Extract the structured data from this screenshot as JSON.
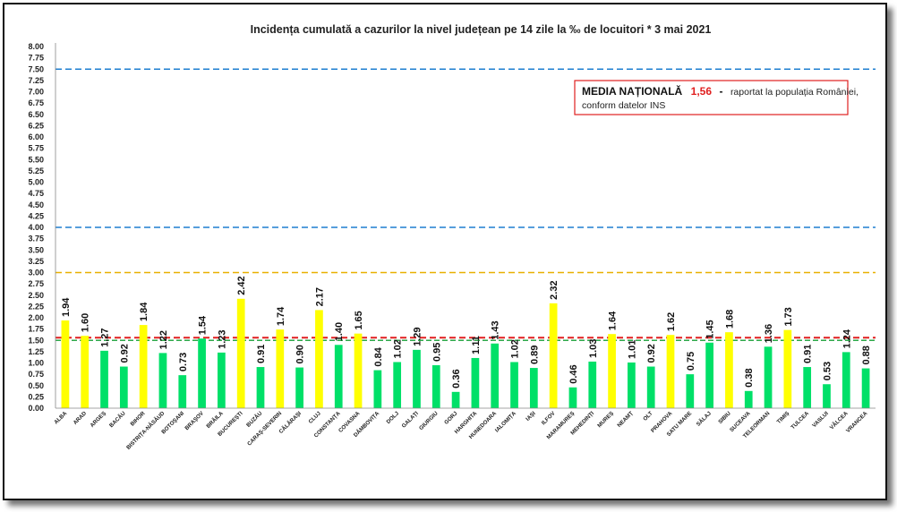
{
  "chart_data": {
    "type": "bar",
    "title": "Incidența cumulată a cazurilor la nivel județean pe 14 zile la ‰ de locuitori *   3 mai 2021",
    "ylim": [
      0,
      8
    ],
    "yticks": [
      "0.00",
      "0.25",
      "0.50",
      "0.75",
      "1.00",
      "1.25",
      "1.50",
      "1.75",
      "2.00",
      "2.25",
      "2.50",
      "2.75",
      "3.00",
      "3.25",
      "3.50",
      "3.75",
      "4.00",
      "4.25",
      "4.50",
      "4.75",
      "5.00",
      "5.25",
      "5.50",
      "5.75",
      "6.00",
      "6.25",
      "6.50",
      "6.75",
      "7.00",
      "7.25",
      "7.50",
      "7.75",
      "8.00"
    ],
    "grid": false,
    "categories": [
      "ALBA",
      "ARAD",
      "ARGEȘ",
      "BACĂU",
      "BIHOR",
      "BISTRIȚA-NĂSĂUD",
      "BOTOȘANI",
      "BRAȘOV",
      "BRĂILA",
      "BUCUREȘTI",
      "BUZĂU",
      "CARAȘ-SEVERIN",
      "CĂLĂRAȘI",
      "CLUJ",
      "CONSTANȚA",
      "COVASNA",
      "DÂMBOVIȚA",
      "DOLJ",
      "GALAȚI",
      "GIURGIU",
      "GORJ",
      "HARGHITA",
      "HUNEDOARA",
      "IALOMIȚA",
      "IAȘI",
      "ILFOV",
      "MARAMUREȘ",
      "MEHEDINȚI",
      "MUREȘ",
      "NEAMȚ",
      "OLT",
      "PRAHOVA",
      "SATU MARE",
      "SĂLAJ",
      "SIBIU",
      "SUCEAVA",
      "TELEORMAN",
      "TIMIȘ",
      "TULCEA",
      "VASLUI",
      "VÂLCEA",
      "VRANCEA"
    ],
    "values": [
      1.94,
      1.6,
      1.27,
      0.92,
      1.84,
      1.22,
      0.73,
      1.54,
      1.23,
      2.42,
      0.91,
      1.74,
      0.9,
      2.17,
      1.4,
      1.65,
      0.84,
      1.02,
      1.29,
      0.95,
      0.36,
      1.11,
      1.43,
      1.02,
      0.89,
      2.32,
      0.46,
      1.03,
      1.64,
      1.01,
      0.92,
      1.62,
      0.75,
      1.45,
      1.68,
      0.38,
      1.36,
      1.73,
      0.91,
      0.53,
      1.24,
      0.88
    ],
    "labels": [
      "1.94",
      "1.60",
      "1.27",
      "0.92",
      "1.84",
      "1.22",
      "0.73",
      "1.54",
      "1.23",
      "2.42",
      "0.91",
      "1.74",
      "0.90",
      "2.17",
      "1.40",
      "1.65",
      "0.84",
      "1.02",
      "1.29",
      "0.95",
      "0.36",
      "1.11",
      "1.43",
      "1.02",
      "0.89",
      "2.32",
      "0.46",
      "1.03",
      "1.64",
      "1.01",
      "0.92",
      "1.62",
      "0.75",
      "1.45",
      "1.68",
      "0.38",
      "1.36",
      "1.73",
      "0.91",
      "0.53",
      "1.24",
      "0.88"
    ],
    "colors": {
      "above": "#ffff00",
      "below": "#00e068"
    },
    "threshold_lines": [
      {
        "value": 7.5,
        "color": "#1f7fd0"
      },
      {
        "value": 4.0,
        "color": "#1f7fd0"
      },
      {
        "value": 3.0,
        "color": "#e8b000"
      },
      {
        "value": 1.56,
        "color": "#e02020"
      },
      {
        "value": 1.5,
        "color": "#2ea84a"
      }
    ],
    "annotation": {
      "main": "MEDIA NAȚIONALĂ",
      "value": "1,56",
      "dash": "-",
      "rest": "raportat la populația României,",
      "line2": "conform datelor INS",
      "border_color": "#e02020"
    }
  }
}
